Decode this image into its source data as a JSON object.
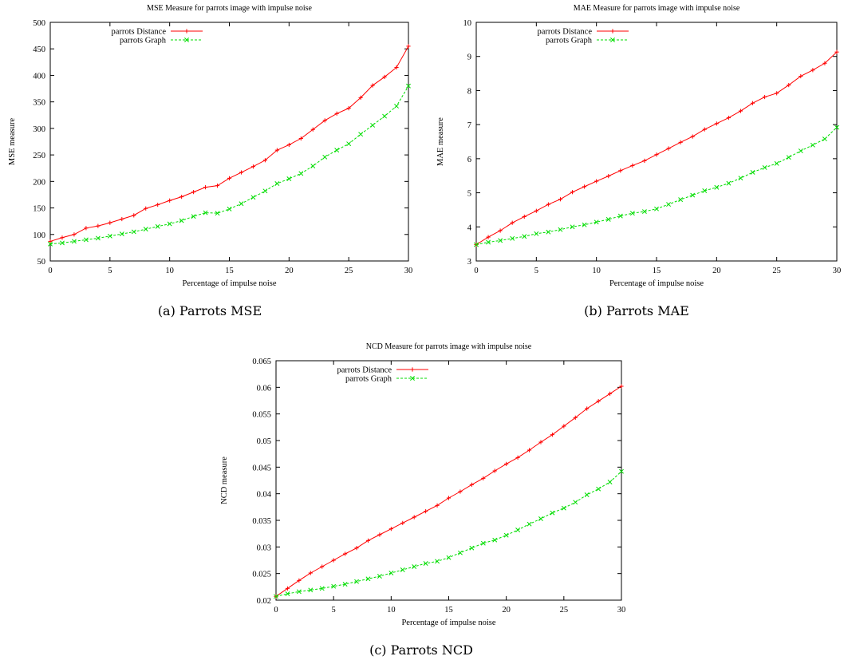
{
  "chart_data": [
    {
      "type": "line",
      "title": "MSE Measure for parrots image with impulse noise",
      "caption": "(a)  Parrots MSE",
      "xlabel": "Percentage of impulse noise",
      "ylabel": "MSE measure",
      "xlim": [
        0,
        30
      ],
      "ylim": [
        50,
        500
      ],
      "xticks": [
        0,
        5,
        10,
        15,
        20,
        25,
        30
      ],
      "yticks": [
        50,
        100,
        150,
        200,
        250,
        300,
        350,
        400,
        450,
        500
      ],
      "tick_labels_x": [
        "0",
        "5",
        "10",
        "15",
        "20",
        "25",
        "30"
      ],
      "tick_labels_y": [
        "50",
        "100",
        "150",
        "200",
        "250",
        "300",
        "350",
        "400",
        "450",
        "500"
      ],
      "legend_position": "top-left",
      "x": [
        0,
        1,
        2,
        3,
        4,
        5,
        6,
        7,
        8,
        9,
        10,
        11,
        12,
        13,
        14,
        15,
        16,
        17,
        18,
        19,
        20,
        21,
        22,
        23,
        24,
        25,
        26,
        27,
        28,
        29,
        30
      ],
      "series": [
        {
          "name": "parrots Distance",
          "color": "#ff0000",
          "marker": "plus",
          "dash": "solid",
          "values": [
            87,
            94,
            100,
            112,
            116,
            122,
            129,
            136,
            149,
            156,
            164,
            171,
            180,
            189,
            192,
            206,
            217,
            228,
            240,
            259,
            269,
            281,
            298,
            315,
            328,
            338,
            358,
            381,
            397,
            415,
            455
          ]
        },
        {
          "name": "parrots Graph",
          "color": "#00dd00",
          "marker": "cross",
          "dash": "dashed",
          "values": [
            82,
            84,
            87,
            90,
            93,
            97,
            101,
            105,
            110,
            115,
            120,
            126,
            134,
            141,
            140,
            148,
            158,
            170,
            182,
            196,
            205,
            215,
            229,
            246,
            259,
            271,
            289,
            306,
            323,
            342,
            380
          ]
        }
      ]
    },
    {
      "type": "line",
      "title": "MAE Measure for parrots image with impulse noise",
      "caption": "(b)  Parrots MAE",
      "xlabel": "Percentage of impulse noise",
      "ylabel": "MAE measure",
      "xlim": [
        0,
        30
      ],
      "ylim": [
        3,
        10
      ],
      "xticks": [
        0,
        5,
        10,
        15,
        20,
        25,
        30
      ],
      "yticks": [
        3,
        4,
        5,
        6,
        7,
        8,
        9,
        10
      ],
      "tick_labels_x": [
        "0",
        "5",
        "10",
        "15",
        "20",
        "25",
        "30"
      ],
      "tick_labels_y": [
        "3",
        "4",
        "5",
        "6",
        "7",
        "8",
        "9",
        "10"
      ],
      "legend_position": "top-left",
      "x": [
        0,
        1,
        2,
        3,
        4,
        5,
        6,
        7,
        8,
        9,
        10,
        11,
        12,
        13,
        14,
        15,
        16,
        17,
        18,
        19,
        20,
        21,
        22,
        23,
        24,
        25,
        26,
        27,
        28,
        29,
        30
      ],
      "series": [
        {
          "name": "parrots Distance",
          "color": "#ff0000",
          "marker": "plus",
          "dash": "solid",
          "values": [
            3.48,
            3.7,
            3.89,
            4.12,
            4.3,
            4.47,
            4.66,
            4.81,
            5.02,
            5.18,
            5.34,
            5.49,
            5.65,
            5.8,
            5.94,
            6.12,
            6.3,
            6.48,
            6.65,
            6.86,
            7.03,
            7.2,
            7.4,
            7.63,
            7.81,
            7.92,
            8.16,
            8.42,
            8.6,
            8.8,
            9.13
          ]
        },
        {
          "name": "parrots Graph",
          "color": "#00dd00",
          "marker": "cross",
          "dash": "dashed",
          "values": [
            3.48,
            3.55,
            3.6,
            3.66,
            3.72,
            3.8,
            3.85,
            3.92,
            4.0,
            4.06,
            4.14,
            4.22,
            4.32,
            4.4,
            4.45,
            4.53,
            4.66,
            4.8,
            4.93,
            5.06,
            5.16,
            5.28,
            5.43,
            5.6,
            5.74,
            5.86,
            6.04,
            6.23,
            6.4,
            6.58,
            6.92
          ]
        }
      ]
    },
    {
      "type": "line",
      "title": "NCD Measure for parrots image with impulse noise",
      "caption": "(c)  Parrots NCD",
      "xlabel": "Percentage of impulse noise",
      "ylabel": "NCD measure",
      "xlim": [
        0,
        30
      ],
      "ylim": [
        0.02,
        0.065
      ],
      "xticks": [
        0,
        5,
        10,
        15,
        20,
        25,
        30
      ],
      "yticks": [
        0.02,
        0.025,
        0.03,
        0.035,
        0.04,
        0.045,
        0.05,
        0.055,
        0.06,
        0.065
      ],
      "tick_labels_x": [
        "0",
        "5",
        "10",
        "15",
        "20",
        "25",
        "30"
      ],
      "tick_labels_y": [
        "0.02",
        "0.025",
        "0.03",
        "0.035",
        "0.04",
        "0.045",
        "0.05",
        "0.055",
        "0.06",
        "0.065"
      ],
      "legend_position": "top-left",
      "x": [
        0,
        1,
        2,
        3,
        4,
        5,
        6,
        7,
        8,
        9,
        10,
        11,
        12,
        13,
        14,
        15,
        16,
        17,
        18,
        19,
        20,
        21,
        22,
        23,
        24,
        25,
        26,
        27,
        28,
        29,
        30
      ],
      "series": [
        {
          "name": "parrots Distance",
          "color": "#ff0000",
          "marker": "plus",
          "dash": "solid",
          "values": [
            0.0207,
            0.0222,
            0.0237,
            0.0251,
            0.0263,
            0.0275,
            0.0287,
            0.0298,
            0.0312,
            0.0323,
            0.0334,
            0.0345,
            0.0356,
            0.0367,
            0.0378,
            0.0392,
            0.0404,
            0.0417,
            0.0429,
            0.0443,
            0.0456,
            0.0468,
            0.0482,
            0.0497,
            0.0511,
            0.0527,
            0.0543,
            0.056,
            0.0574,
            0.0588,
            0.0602
          ]
        },
        {
          "name": "parrots Graph",
          "color": "#00dd00",
          "marker": "cross",
          "dash": "dashed",
          "values": [
            0.0207,
            0.0212,
            0.0216,
            0.0219,
            0.0222,
            0.0226,
            0.023,
            0.0235,
            0.024,
            0.0245,
            0.0251,
            0.0257,
            0.0263,
            0.0269,
            0.0273,
            0.028,
            0.0289,
            0.0298,
            0.0307,
            0.0313,
            0.0322,
            0.0332,
            0.0343,
            0.0353,
            0.0364,
            0.0373,
            0.0384,
            0.0398,
            0.0409,
            0.0422,
            0.0442
          ]
        }
      ]
    }
  ]
}
